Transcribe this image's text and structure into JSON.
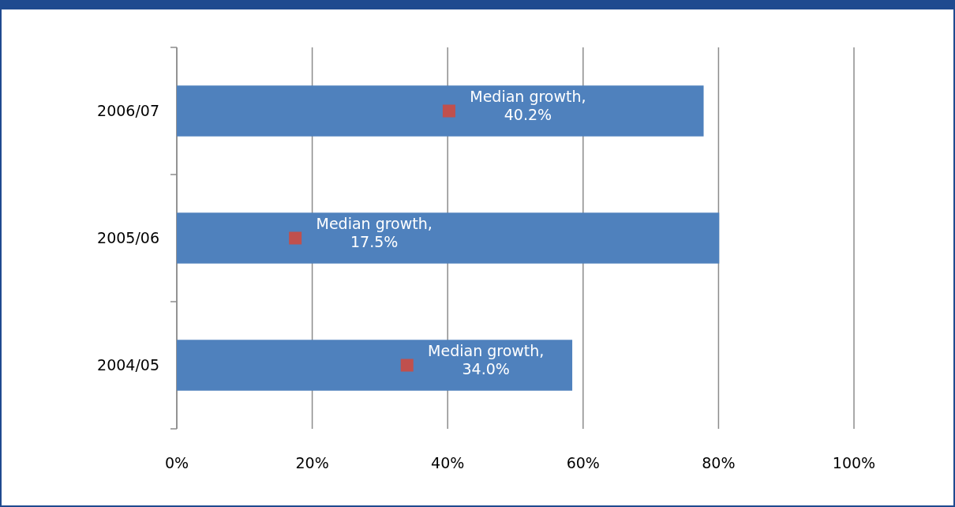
{
  "chart_data": {
    "type": "bar",
    "orientation": "horizontal",
    "categories": [
      "2006/07",
      "2005/06",
      "2004/05"
    ],
    "series": [
      {
        "color": "#4f81bd",
        "values": [
          77.8,
          80.1,
          58.4
        ]
      },
      {
        "type": "scatter",
        "color": "#c0504d",
        "x": [
          "2006/07",
          "2005/06",
          "2004/05"
        ],
        "values": [
          40.2,
          17.5,
          34.0
        ]
      }
    ],
    "xlim": [
      0,
      100
    ],
    "xticks": [
      {
        "value": 0,
        "label": "0%"
      },
      {
        "value": 20,
        "label": "20%"
      },
      {
        "value": 40,
        "label": "40%"
      },
      {
        "value": 60,
        "label": "60%"
      },
      {
        "value": 80,
        "label": "80%"
      },
      {
        "value": 100,
        "label": "100%"
      }
    ],
    "grid": "x",
    "marker": "square",
    "annotations": [
      {
        "text": "Median growth, 40.2%",
        "x": 40.2,
        "y": "2006/07"
      },
      {
        "text": "Median growth, 17.5%",
        "x": 17.5,
        "y": "2005/06"
      },
      {
        "text": "Median growth, 34.0%",
        "x": 34.0,
        "y": "2004/05"
      }
    ]
  }
}
